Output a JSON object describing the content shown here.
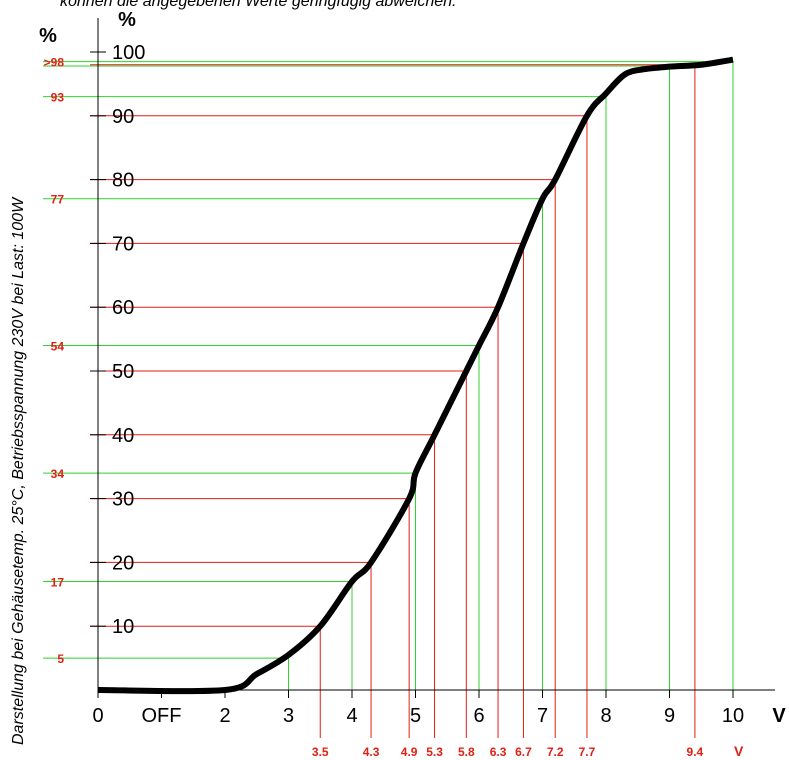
{
  "notes": {
    "top": "können die angegebenen Werte geringfügig abweichen.",
    "side": "Darstellung bei Gehäusetemp. 25°C, Betriebsspannung 230V bei Last: 100W"
  },
  "chart_data": {
    "type": "line",
    "xlabel": "V",
    "ylabel": "%",
    "xlim": [
      0,
      10
    ],
    "ylim": [
      0,
      100
    ],
    "x_ticks": [
      {
        "v": 0,
        "label": "0"
      },
      {
        "v": 1,
        "label": "OFF"
      },
      {
        "v": 2,
        "label": "2"
      },
      {
        "v": 3,
        "label": "3"
      },
      {
        "v": 4,
        "label": "4"
      },
      {
        "v": 5,
        "label": "5"
      },
      {
        "v": 6,
        "label": "6"
      },
      {
        "v": 7,
        "label": "7"
      },
      {
        "v": 8,
        "label": "8"
      },
      {
        "v": 9,
        "label": "9"
      },
      {
        "v": 10,
        "label": "10"
      }
    ],
    "y_ticks": [
      "10",
      "20",
      "30",
      "40",
      "50",
      "60",
      "70",
      "80",
      "90",
      "100"
    ],
    "curve": [
      [
        0,
        0
      ],
      [
        2,
        0
      ],
      [
        2.5,
        2.5
      ],
      [
        3,
        5.5
      ],
      [
        3.5,
        10
      ],
      [
        4,
        17
      ],
      [
        4.3,
        20
      ],
      [
        4.9,
        30
      ],
      [
        5,
        34
      ],
      [
        5.3,
        40
      ],
      [
        5.8,
        50
      ],
      [
        6,
        54
      ],
      [
        6.3,
        60
      ],
      [
        6.7,
        70
      ],
      [
        7,
        77
      ],
      [
        7.2,
        80
      ],
      [
        7.7,
        90
      ],
      [
        8,
        93.5
      ],
      [
        8.3,
        96.5
      ],
      [
        8.6,
        97.3
      ],
      [
        9,
        97.7
      ],
      [
        9.5,
        98
      ],
      [
        10,
        98.8
      ]
    ],
    "green_marks": [
      {
        "x": 3,
        "y": 5,
        "label": "5"
      },
      {
        "x": 4,
        "y": 17,
        "label": "17"
      },
      {
        "x": 5,
        "y": 34,
        "label": "34"
      },
      {
        "x": 6,
        "y": 54,
        "label": "54"
      },
      {
        "x": 7,
        "y": 77,
        "label": "77"
      },
      {
        "x": 8,
        "y": 93,
        "label": "93"
      },
      {
        "x": 9,
        "y": 97.8,
        "label": ""
      },
      {
        "x": 10,
        "y": 98.5,
        "label": ">98"
      }
    ],
    "red_marks": [
      {
        "x": 3.5,
        "y": 10,
        "label": "3.5"
      },
      {
        "x": 4.3,
        "y": 20,
        "label": "4.3"
      },
      {
        "x": 4.9,
        "y": 30,
        "label": "4.9"
      },
      {
        "x": 5.3,
        "y": 40,
        "label": "5.3"
      },
      {
        "x": 5.8,
        "y": 50,
        "label": "5.8"
      },
      {
        "x": 6.3,
        "y": 60,
        "label": "6.3"
      },
      {
        "x": 6.7,
        "y": 70,
        "label": "6.7"
      },
      {
        "x": 7.2,
        "y": 80,
        "label": "7.2"
      },
      {
        "x": 7.7,
        "y": 90,
        "label": "7.7"
      },
      {
        "x": 9.4,
        "y": 98,
        "label": "9.4"
      }
    ],
    "red_axis_unit": "V",
    "left_unit": "%",
    "colors": {
      "curve": "#000000",
      "green": "#2fd22f",
      "red": "#e31e12",
      "axis": "#000000"
    }
  }
}
